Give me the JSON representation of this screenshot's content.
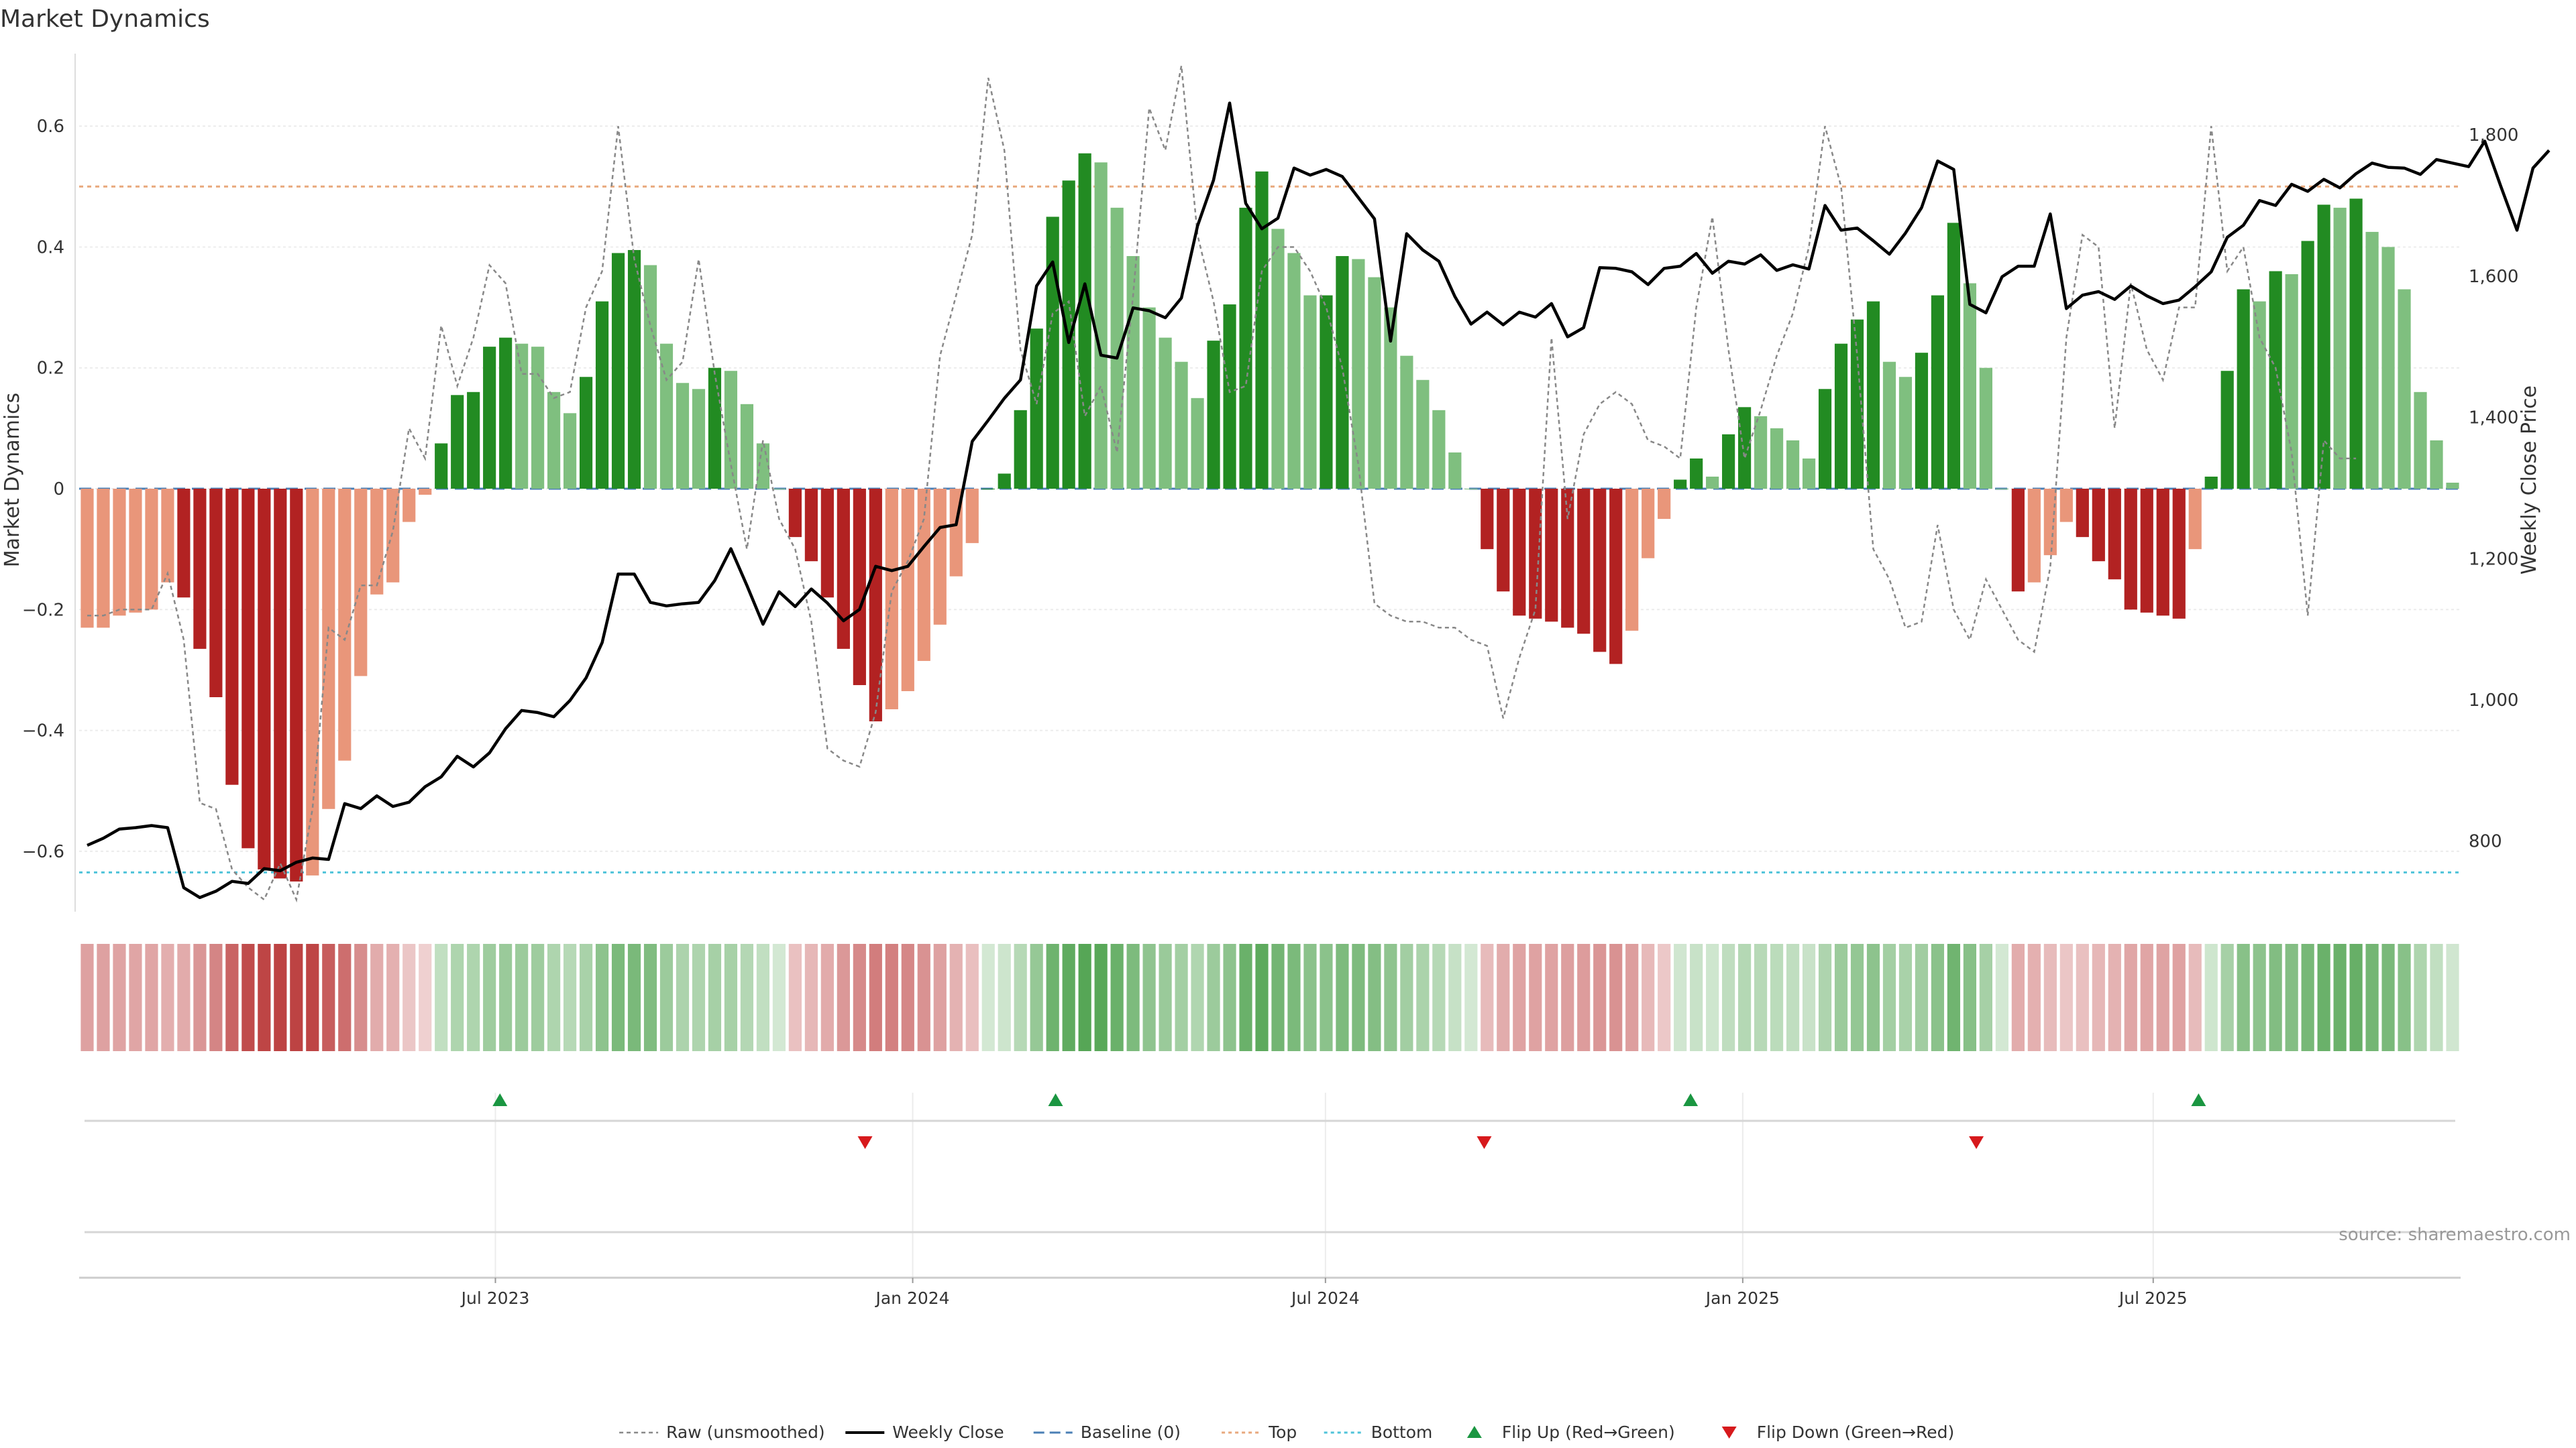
{
  "chart_data": {
    "type": "bar",
    "title": "Market Dynamics",
    "ylabel": "Market Dynamics",
    "y2label": "Weekly Close Price",
    "source": "source: sharemaestro.com",
    "ylim": [
      -0.7,
      0.72
    ],
    "y2lim": [
      700,
      1915
    ],
    "y_ticks": [
      0.6,
      0.4,
      0.2,
      0,
      -0.2,
      -0.4,
      -0.6
    ],
    "y_tick_labels": [
      "0.6",
      "0.4",
      "0.2",
      "0",
      "−0.2",
      "−0.4",
      "−0.6"
    ],
    "y2_ticks": [
      1800,
      1600,
      1400,
      1200,
      1000,
      800
    ],
    "y2_tick_labels": [
      "1,800",
      "1,600",
      "1,400",
      "1,200",
      "1,000",
      "800"
    ],
    "x_start": "2023-01-02",
    "x_end": "2025-11-10",
    "x_ticks": [
      "2023-07-01",
      "2024-01-01",
      "2024-07-01",
      "2025-01-01",
      "2025-07-01"
    ],
    "x_tick_labels": [
      "Jul 2023",
      "Jan 2024",
      "Jul 2024",
      "Jan 2025",
      "Jul 2025"
    ],
    "top_line": 0.5,
    "bottom_line": -0.635,
    "baseline": 0,
    "grid": true,
    "legend_placement": "bottom-center",
    "legend": [
      "Raw (unsmoothed)",
      "Weekly Close",
      "Baseline (0)",
      "Top",
      "Bottom",
      "Flip Up (Red→Green)",
      "Flip Down (Green→Red)"
    ],
    "colors": {
      "strong_green": "#228b22",
      "light_green": "#7fbf7f",
      "strong_red": "#b22222",
      "light_red": "#e9967a",
      "raw": "#888888",
      "close": "#000000",
      "baseline": "#4a7fb5",
      "top": "#e8a87c",
      "bottom": "#4fc3d9",
      "flip_up": "#1a9641",
      "flip_down": "#d7191c"
    },
    "values": [
      -0.23,
      -0.23,
      -0.21,
      -0.205,
      -0.2,
      -0.155,
      -0.18,
      -0.265,
      -0.345,
      -0.49,
      -0.595,
      -0.63,
      -0.645,
      -0.65,
      -0.64,
      -0.53,
      -0.45,
      -0.31,
      -0.175,
      -0.155,
      -0.055,
      -0.01,
      0.075,
      0.155,
      0.16,
      0.235,
      0.25,
      0.24,
      0.235,
      0.16,
      0.125,
      0.185,
      0.31,
      0.39,
      0.395,
      0.37,
      0.24,
      0.175,
      0.165,
      0.2,
      0.195,
      0.14,
      0.075,
      0,
      -0.08,
      -0.12,
      -0.18,
      -0.265,
      -0.325,
      -0.385,
      -0.365,
      -0.335,
      -0.285,
      -0.225,
      -0.145,
      -0.09,
      0,
      0.025,
      0.13,
      0.265,
      0.45,
      0.51,
      0.555,
      0.54,
      0.465,
      0.385,
      0.3,
      0.25,
      0.21,
      0.15,
      0.245,
      0.305,
      0.465,
      0.525,
      0.43,
      0.39,
      0.32,
      0.32,
      0.385,
      0.38,
      0.35,
      0.3,
      0.22,
      0.18,
      0.13,
      0.06,
      0,
      -0.1,
      -0.17,
      -0.21,
      -0.215,
      -0.22,
      -0.23,
      -0.24,
      -0.27,
      -0.29,
      -0.235,
      -0.115,
      -0.05,
      0.015,
      0.05,
      0.02,
      0.09,
      0.135,
      0.12,
      0.1,
      0.08,
      0.05,
      0.165,
      0.24,
      0.28,
      0.31,
      0.21,
      0.185,
      0.225,
      0.32,
      0.44,
      0.34,
      0.2,
      0,
      -0.17,
      -0.155,
      -0.11,
      -0.055,
      -0.08,
      -0.12,
      -0.15,
      -0.2,
      -0.205,
      -0.21,
      -0.215,
      -0.1,
      0.02,
      0.195,
      0.33,
      0.31,
      0.36,
      0.355,
      0.41,
      0.47,
      0.465,
      0.48,
      0.425,
      0.4,
      0.33,
      0.16,
      0.08,
      0.01
    ],
    "raw": [
      -0.21,
      -0.21,
      -0.2,
      -0.2,
      -0.2,
      -0.14,
      -0.25,
      -0.52,
      -0.53,
      -0.63,
      -0.66,
      -0.68,
      -0.62,
      -0.68,
      -0.53,
      -0.23,
      -0.25,
      -0.16,
      -0.16,
      -0.07,
      0.1,
      0.05,
      0.27,
      0.17,
      0.25,
      0.37,
      0.34,
      0.19,
      0.19,
      0.15,
      0.16,
      0.3,
      0.36,
      0.6,
      0.38,
      0.27,
      0.18,
      0.21,
      0.38,
      0.19,
      0.04,
      -0.1,
      0.08,
      -0.05,
      -0.1,
      -0.22,
      -0.43,
      -0.45,
      -0.46,
      -0.37,
      -0.17,
      -0.12,
      -0.05,
      0.22,
      0.32,
      0.42,
      0.68,
      0.56,
      0.23,
      0.14,
      0.29,
      0.31,
      0.12,
      0.17,
      0.06,
      0.32,
      0.63,
      0.56,
      0.7,
      0.42,
      0.31,
      0.16,
      0.17,
      0.36,
      0.4,
      0.4,
      0.36,
      0.3,
      0.2,
      0.04,
      -0.19,
      -0.21,
      -0.22,
      -0.22,
      -0.23,
      -0.23,
      -0.25,
      -0.26,
      -0.38,
      -0.28,
      -0.2,
      0.25,
      -0.05,
      0.09,
      0.14,
      0.16,
      0.14,
      0.08,
      0.07,
      0.05,
      0.3,
      0.45,
      0.23,
      0.05,
      0.13,
      0.22,
      0.29,
      0.4,
      0.6,
      0.5,
      0.22,
      -0.1,
      -0.15,
      -0.23,
      -0.22,
      -0.06,
      -0.2,
      -0.25,
      -0.15,
      -0.2,
      -0.25,
      -0.27,
      -0.13,
      0.25,
      0.42,
      0.4,
      0.1,
      0.34,
      0.23,
      0.18,
      0.3,
      0.3,
      0.6,
      0.36,
      0.4,
      0.25,
      0.2,
      0.06,
      -0.21,
      0.08,
      0.05,
      0.05
    ],
    "weekly_close": [
      794,
      804,
      817,
      819,
      822,
      819,
      734,
      720,
      729,
      743,
      740,
      761,
      758,
      770,
      776,
      774,
      853,
      846,
      864,
      849,
      855,
      877,
      891,
      920,
      905,
      925,
      959,
      985,
      982,
      976,
      999,
      1031,
      1081,
      1178,
      1178,
      1138,
      1133,
      1136,
      1138,
      1169,
      1214,
      1162,
      1107,
      1153,
      1132,
      1157,
      1137,
      1112,
      1128,
      1189,
      1183,
      1189,
      1217,
      1244,
      1248,
      1366,
      1396,
      1427,
      1453,
      1586,
      1620,
      1506,
      1589,
      1488,
      1484,
      1555,
      1551,
      1541,
      1569,
      1671,
      1736,
      1845,
      1703,
      1667,
      1682,
      1753,
      1743,
      1751,
      1741,
      1711,
      1681,
      1508,
      1660,
      1637,
      1621,
      1571,
      1532,
      1549,
      1531,
      1549,
      1542,
      1561,
      1514,
      1527,
      1612,
      1611,
      1606,
      1588,
      1611,
      1614,
      1632,
      1604,
      1621,
      1617,
      1630,
      1608,
      1616,
      1610,
      1700,
      1665,
      1668,
      1650,
      1631,
      1661,
      1697,
      1763,
      1751,
      1560,
      1548,
      1599,
      1614,
      1614,
      1688,
      1554,
      1573,
      1578,
      1567,
      1586,
      1572,
      1561,
      1566,
      1585,
      1606,
      1655,
      1672,
      1707,
      1700,
      1730,
      1720,
      1737,
      1725,
      1745,
      1760,
      1754,
      1753,
      1744,
      1765,
      1760,
      1755,
      1791,
      1727,
      1665,
      1753,
      1778
    ],
    "heatmap_intensity": [
      0.35,
      0.35,
      0.33,
      0.32,
      0.32,
      0.25,
      0.28,
      0.42,
      0.54,
      0.77,
      0.94,
      0.99,
      1.0,
      1.0,
      0.99,
      0.82,
      0.7,
      0.48,
      0.27,
      0.24,
      0.09,
      0.02,
      0.12,
      0.25,
      0.25,
      0.37,
      0.39,
      0.38,
      0.37,
      0.25,
      0.2,
      0.29,
      0.48,
      0.61,
      0.62,
      0.58,
      0.38,
      0.27,
      0.26,
      0.31,
      0.3,
      0.22,
      0.12,
      0.0,
      0.12,
      0.19,
      0.28,
      0.41,
      0.51,
      0.6,
      0.57,
      0.53,
      0.45,
      0.35,
      0.23,
      0.14,
      0.0,
      0.04,
      0.2,
      0.42,
      0.7,
      0.8,
      0.87,
      0.85,
      0.73,
      0.6,
      0.47,
      0.39,
      0.33,
      0.24,
      0.38,
      0.48,
      0.73,
      0.82,
      0.67,
      0.61,
      0.5,
      0.5,
      0.6,
      0.59,
      0.55,
      0.47,
      0.34,
      0.28,
      0.2,
      0.09,
      0.0,
      0.16,
      0.27,
      0.33,
      0.34,
      0.34,
      0.36,
      0.38,
      0.42,
      0.45,
      0.37,
      0.18,
      0.08,
      0.02,
      0.08,
      0.03,
      0.14,
      0.21,
      0.19,
      0.16,
      0.13,
      0.08,
      0.26,
      0.38,
      0.44,
      0.48,
      0.33,
      0.29,
      0.35,
      0.5,
      0.69,
      0.53,
      0.31,
      0.0,
      0.27,
      0.24,
      0.17,
      0.09,
      0.13,
      0.19,
      0.23,
      0.31,
      0.32,
      0.33,
      0.34,
      0.16,
      0.03,
      0.31,
      0.52,
      0.48,
      0.56,
      0.55,
      0.64,
      0.73,
      0.73,
      0.75,
      0.66,
      0.62,
      0.52,
      0.25,
      0.12,
      0.02
    ],
    "flip_up_dates": [
      "2023-07-03",
      "2024-03-04",
      "2024-12-09",
      "2025-07-21"
    ],
    "flip_down_dates": [
      "2023-12-11",
      "2024-09-09",
      "2025-04-14"
    ]
  }
}
